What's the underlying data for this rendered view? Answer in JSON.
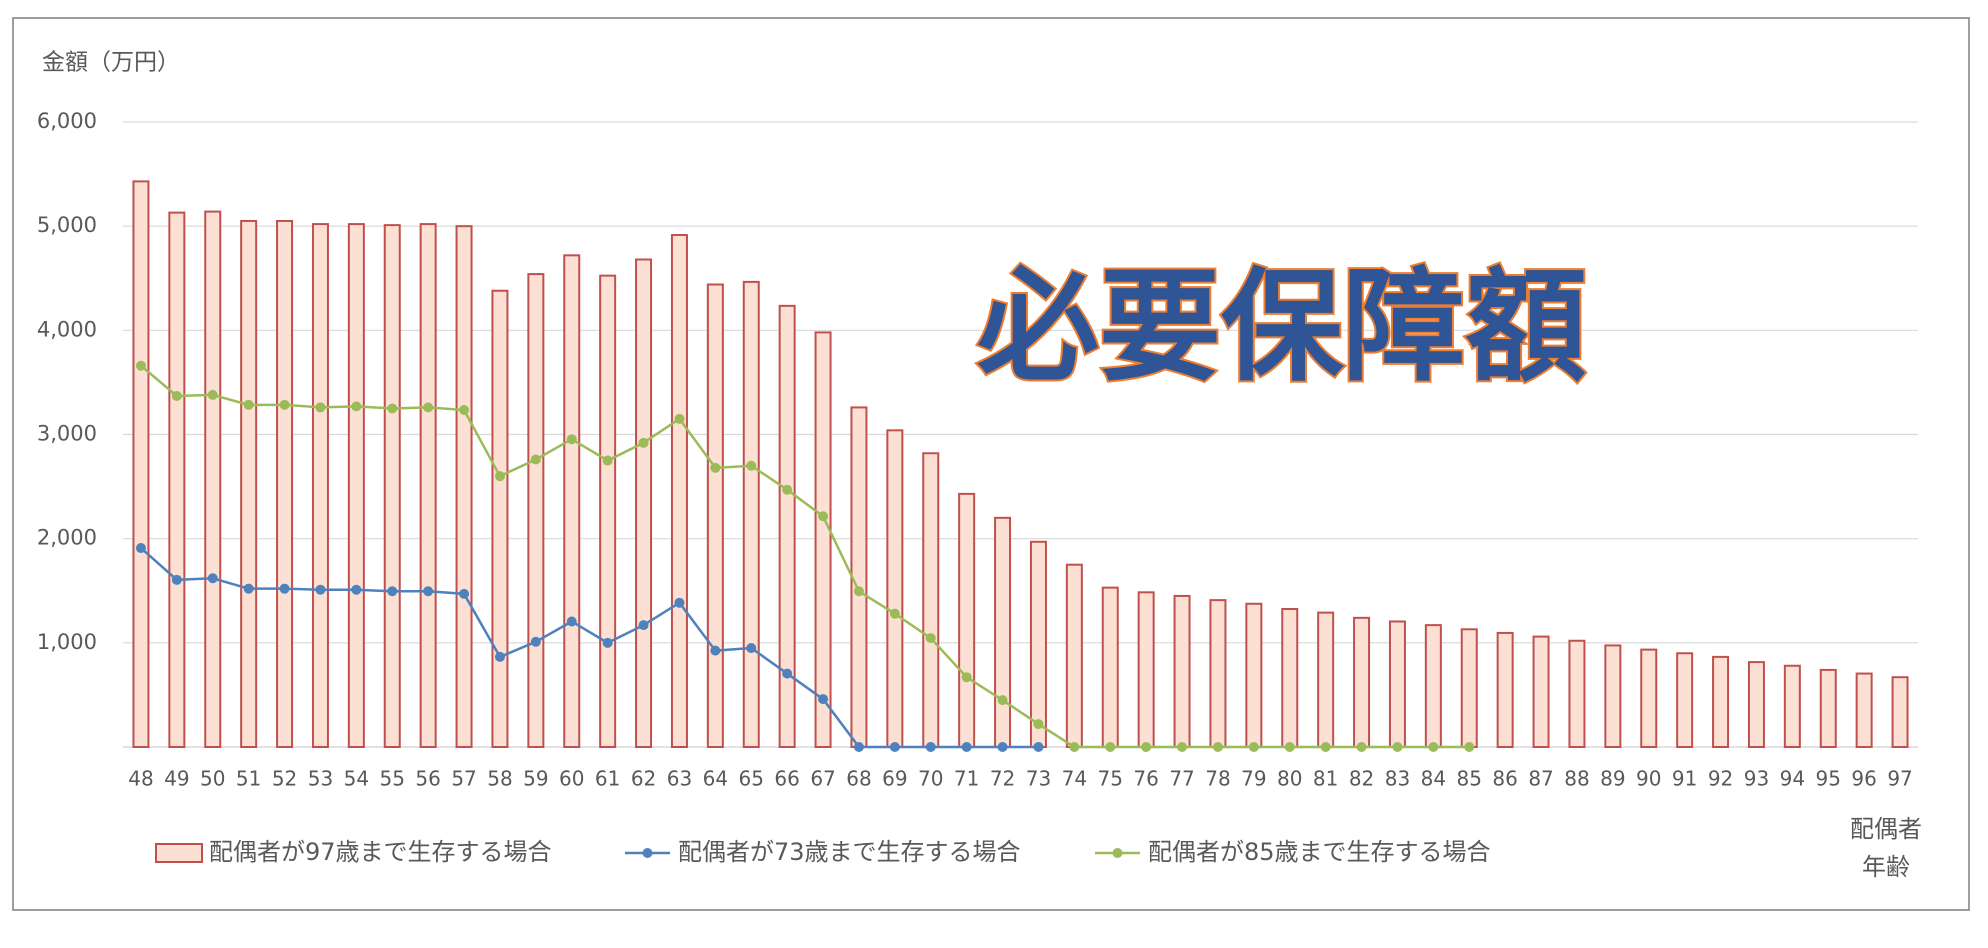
{
  "chart_data": {
    "type": "bar_line",
    "title": "必要保障額",
    "y_label": "金額（万円）",
    "x_label": [
      "配偶者",
      "年齢"
    ],
    "categories": [
      "48",
      "49",
      "50",
      "51",
      "52",
      "53",
      "54",
      "55",
      "56",
      "57",
      "58",
      "59",
      "60",
      "61",
      "62",
      "63",
      "64",
      "65",
      "66",
      "67",
      "68",
      "69",
      "70",
      "71",
      "72",
      "73",
      "74",
      "75",
      "76",
      "77",
      "78",
      "79",
      "80",
      "81",
      "82",
      "83",
      "84",
      "85",
      "86",
      "87",
      "88",
      "89",
      "90",
      "91",
      "92",
      "93",
      "94",
      "95",
      "96",
      "97"
    ],
    "series": [
      {
        "name": "配偶者が97歳まで生存する場合",
        "kind": "bar",
        "color": "#fbe0d3",
        "edge_color": "#c0504d",
        "values": [
          5430,
          5130,
          5140,
          5050,
          5050,
          5020,
          5020,
          5010,
          5020,
          5000,
          4380,
          4540,
          4720,
          4525,
          4680,
          4915,
          4440,
          4465,
          4235,
          3980,
          3260,
          3040,
          2820,
          2430,
          2200,
          1970,
          1750,
          1530,
          1485,
          1450,
          1410,
          1375,
          1325,
          1290,
          1240,
          1205,
          1170,
          1130,
          1095,
          1060,
          1020,
          975,
          935,
          900,
          865,
          815,
          780,
          740,
          705,
          670
        ]
      },
      {
        "name": "配偶者が73歳まで生存する場合",
        "kind": "line",
        "color": "#4f81bd",
        "values": [
          1910,
          1605,
          1620,
          1520,
          1520,
          1510,
          1510,
          1495,
          1495,
          1470,
          865,
          1010,
          1205,
          1000,
          1170,
          1385,
          925,
          950,
          705,
          460,
          0,
          0,
          0,
          0,
          0,
          0,
          null,
          null,
          null,
          null,
          null,
          null,
          null,
          null,
          null,
          null,
          null,
          null,
          null,
          null,
          null,
          null,
          null,
          null,
          null,
          null,
          null,
          null,
          null,
          null
        ]
      },
      {
        "name": "配偶者が85歳まで生存する場合",
        "kind": "line",
        "color": "#9bbb59",
        "values": [
          3660,
          3370,
          3380,
          3285,
          3285,
          3260,
          3270,
          3250,
          3260,
          3235,
          2600,
          2760,
          2955,
          2750,
          2920,
          3150,
          2680,
          2700,
          2470,
          2215,
          1495,
          1280,
          1045,
          670,
          450,
          220,
          0,
          0,
          0,
          0,
          0,
          0,
          0,
          0,
          0,
          0,
          0,
          0,
          null,
          null,
          null,
          null,
          null,
          null,
          null,
          null,
          null,
          null,
          null,
          null
        ]
      }
    ],
    "ylim": [
      0,
      6000
    ],
    "yticks": [
      {
        "value": 1000,
        "label": "1,000"
      },
      {
        "value": 2000,
        "label": "2,000"
      },
      {
        "value": 3000,
        "label": "3,000"
      },
      {
        "value": 4000,
        "label": "4,000"
      },
      {
        "value": 5000,
        "label": "5,000"
      },
      {
        "value": 6000,
        "label": "6,000"
      }
    ],
    "grid": true
  }
}
